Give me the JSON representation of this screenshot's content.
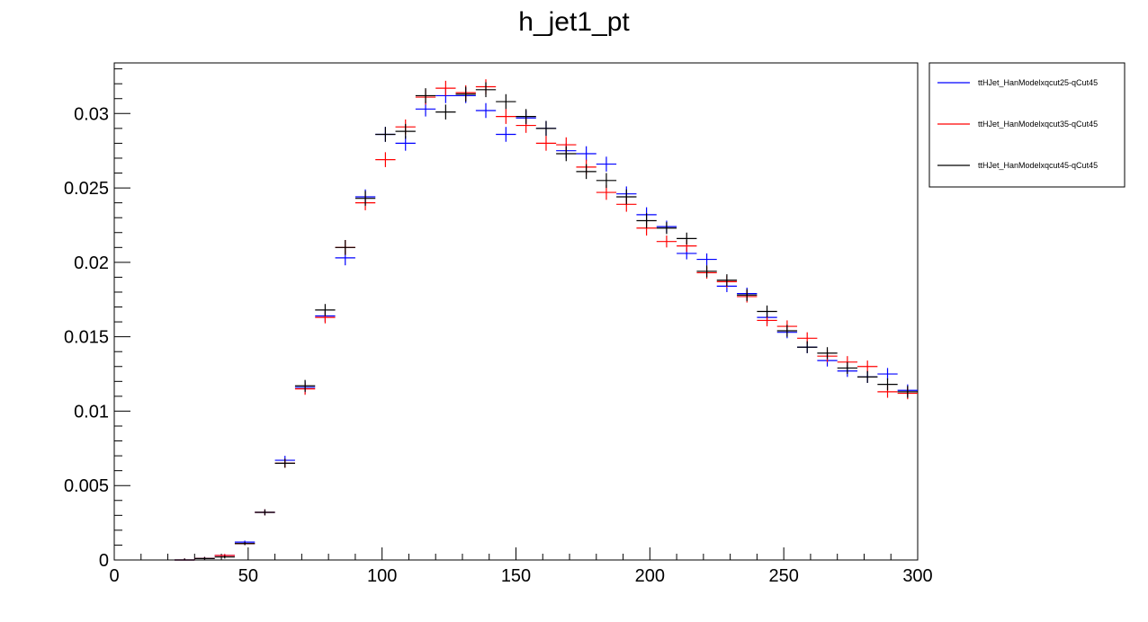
{
  "chart_data": {
    "type": "scatter",
    "title": "h_jet1_pt",
    "xlabel": "",
    "ylabel": "",
    "xlim": [
      0,
      300
    ],
    "ylim": [
      0,
      0.0334
    ],
    "x_ticks": [
      0,
      50,
      100,
      150,
      200,
      250,
      300
    ],
    "x_tick_labels": [
      "0",
      "50",
      "100",
      "150",
      "200",
      "250",
      "300"
    ],
    "y_ticks": [
      0,
      0.005,
      0.01,
      0.015,
      0.02,
      0.025,
      0.03
    ],
    "y_tick_labels": [
      "0",
      "0.005",
      "0.01",
      "0.015",
      "0.02",
      "0.025",
      "0.03"
    ],
    "grid": false,
    "legend_position": "right",
    "bin_width": 7.5,
    "x": [
      26.25,
      33.75,
      41.25,
      48.75,
      56.25,
      63.75,
      71.25,
      78.75,
      86.25,
      93.75,
      101.25,
      108.75,
      116.25,
      123.75,
      131.25,
      138.75,
      146.25,
      153.75,
      161.25,
      168.75,
      176.25,
      183.75,
      191.25,
      198.75,
      206.25,
      213.75,
      221.25,
      228.75,
      236.25,
      243.75,
      251.25,
      258.75,
      266.25,
      273.75,
      281.25,
      288.75,
      296.25
    ],
    "series": [
      {
        "name": "ttHJet_HanModelxqcut25-qCut45",
        "color": "#0000ff",
        "values": [
          0.0,
          0.0001,
          0.0003,
          0.0012,
          0.0032,
          0.0067,
          0.0116,
          0.0164,
          0.0203,
          0.0244,
          0.0286,
          0.028,
          0.0303,
          0.0312,
          0.0312,
          0.0302,
          0.0286,
          0.0297,
          0.029,
          0.0275,
          0.0273,
          0.0266,
          0.0246,
          0.0232,
          0.0224,
          0.0206,
          0.0202,
          0.0184,
          0.0179,
          0.0163,
          0.0153,
          0.0143,
          0.0134,
          0.0127,
          0.0123,
          0.0125,
          0.0114
        ],
        "errors": [
          0.0001,
          0.0001,
          0.0001,
          0.0001,
          0.0002,
          0.0003,
          0.0004,
          0.0004,
          0.0005,
          0.0005,
          0.0005,
          0.0005,
          0.0005,
          0.0005,
          0.0005,
          0.0005,
          0.0005,
          0.0005,
          0.0005,
          0.0005,
          0.0005,
          0.0005,
          0.0005,
          0.0005,
          0.0004,
          0.0004,
          0.0004,
          0.0004,
          0.0004,
          0.0004,
          0.0004,
          0.0004,
          0.0004,
          0.0004,
          0.0004,
          0.0004,
          0.0004
        ]
      },
      {
        "name": "ttHJet_HanModelxqcut35-qCut45",
        "color": "#ff0000",
        "values": [
          0.0,
          0.0001,
          0.0003,
          0.0011,
          0.0032,
          0.0065,
          0.0115,
          0.0163,
          0.021,
          0.024,
          0.0269,
          0.0291,
          0.0311,
          0.0317,
          0.0314,
          0.0318,
          0.0298,
          0.0292,
          0.028,
          0.0279,
          0.0264,
          0.0247,
          0.0239,
          0.0223,
          0.0214,
          0.0211,
          0.0193,
          0.0187,
          0.0177,
          0.0161,
          0.0157,
          0.0149,
          0.0137,
          0.0133,
          0.013,
          0.0113,
          0.0112
        ],
        "errors": [
          0.0001,
          0.0001,
          0.0001,
          0.0001,
          0.0002,
          0.0003,
          0.0004,
          0.0004,
          0.0005,
          0.0005,
          0.0005,
          0.0005,
          0.0005,
          0.0005,
          0.0005,
          0.0005,
          0.0005,
          0.0005,
          0.0005,
          0.0005,
          0.0005,
          0.0005,
          0.0005,
          0.0005,
          0.0004,
          0.0004,
          0.0004,
          0.0004,
          0.0004,
          0.0004,
          0.0004,
          0.0004,
          0.0004,
          0.0004,
          0.0004,
          0.0004,
          0.0004
        ]
      },
      {
        "name": "ttHJet_HanModelxqcut45-qCut45",
        "color": "#000000",
        "values": [
          0.0,
          0.0001,
          0.0002,
          0.0011,
          0.0032,
          0.0065,
          0.0117,
          0.0168,
          0.021,
          0.0243,
          0.0286,
          0.0288,
          0.0312,
          0.0301,
          0.0313,
          0.0316,
          0.0308,
          0.0298,
          0.029,
          0.0273,
          0.0261,
          0.0255,
          0.0244,
          0.0228,
          0.0223,
          0.0216,
          0.0194,
          0.0188,
          0.0178,
          0.0167,
          0.0154,
          0.0143,
          0.0139,
          0.0129,
          0.0123,
          0.0118,
          0.0113
        ],
        "errors": [
          0.0001,
          0.0001,
          0.0001,
          0.0001,
          0.0002,
          0.0003,
          0.0004,
          0.0004,
          0.0005,
          0.0005,
          0.0005,
          0.0005,
          0.0005,
          0.0005,
          0.0005,
          0.0005,
          0.0005,
          0.0005,
          0.0005,
          0.0005,
          0.0005,
          0.0005,
          0.0005,
          0.0005,
          0.0004,
          0.0004,
          0.0004,
          0.0004,
          0.0004,
          0.0004,
          0.0004,
          0.0004,
          0.0004,
          0.0004,
          0.0004,
          0.0004,
          0.0004
        ]
      }
    ]
  }
}
